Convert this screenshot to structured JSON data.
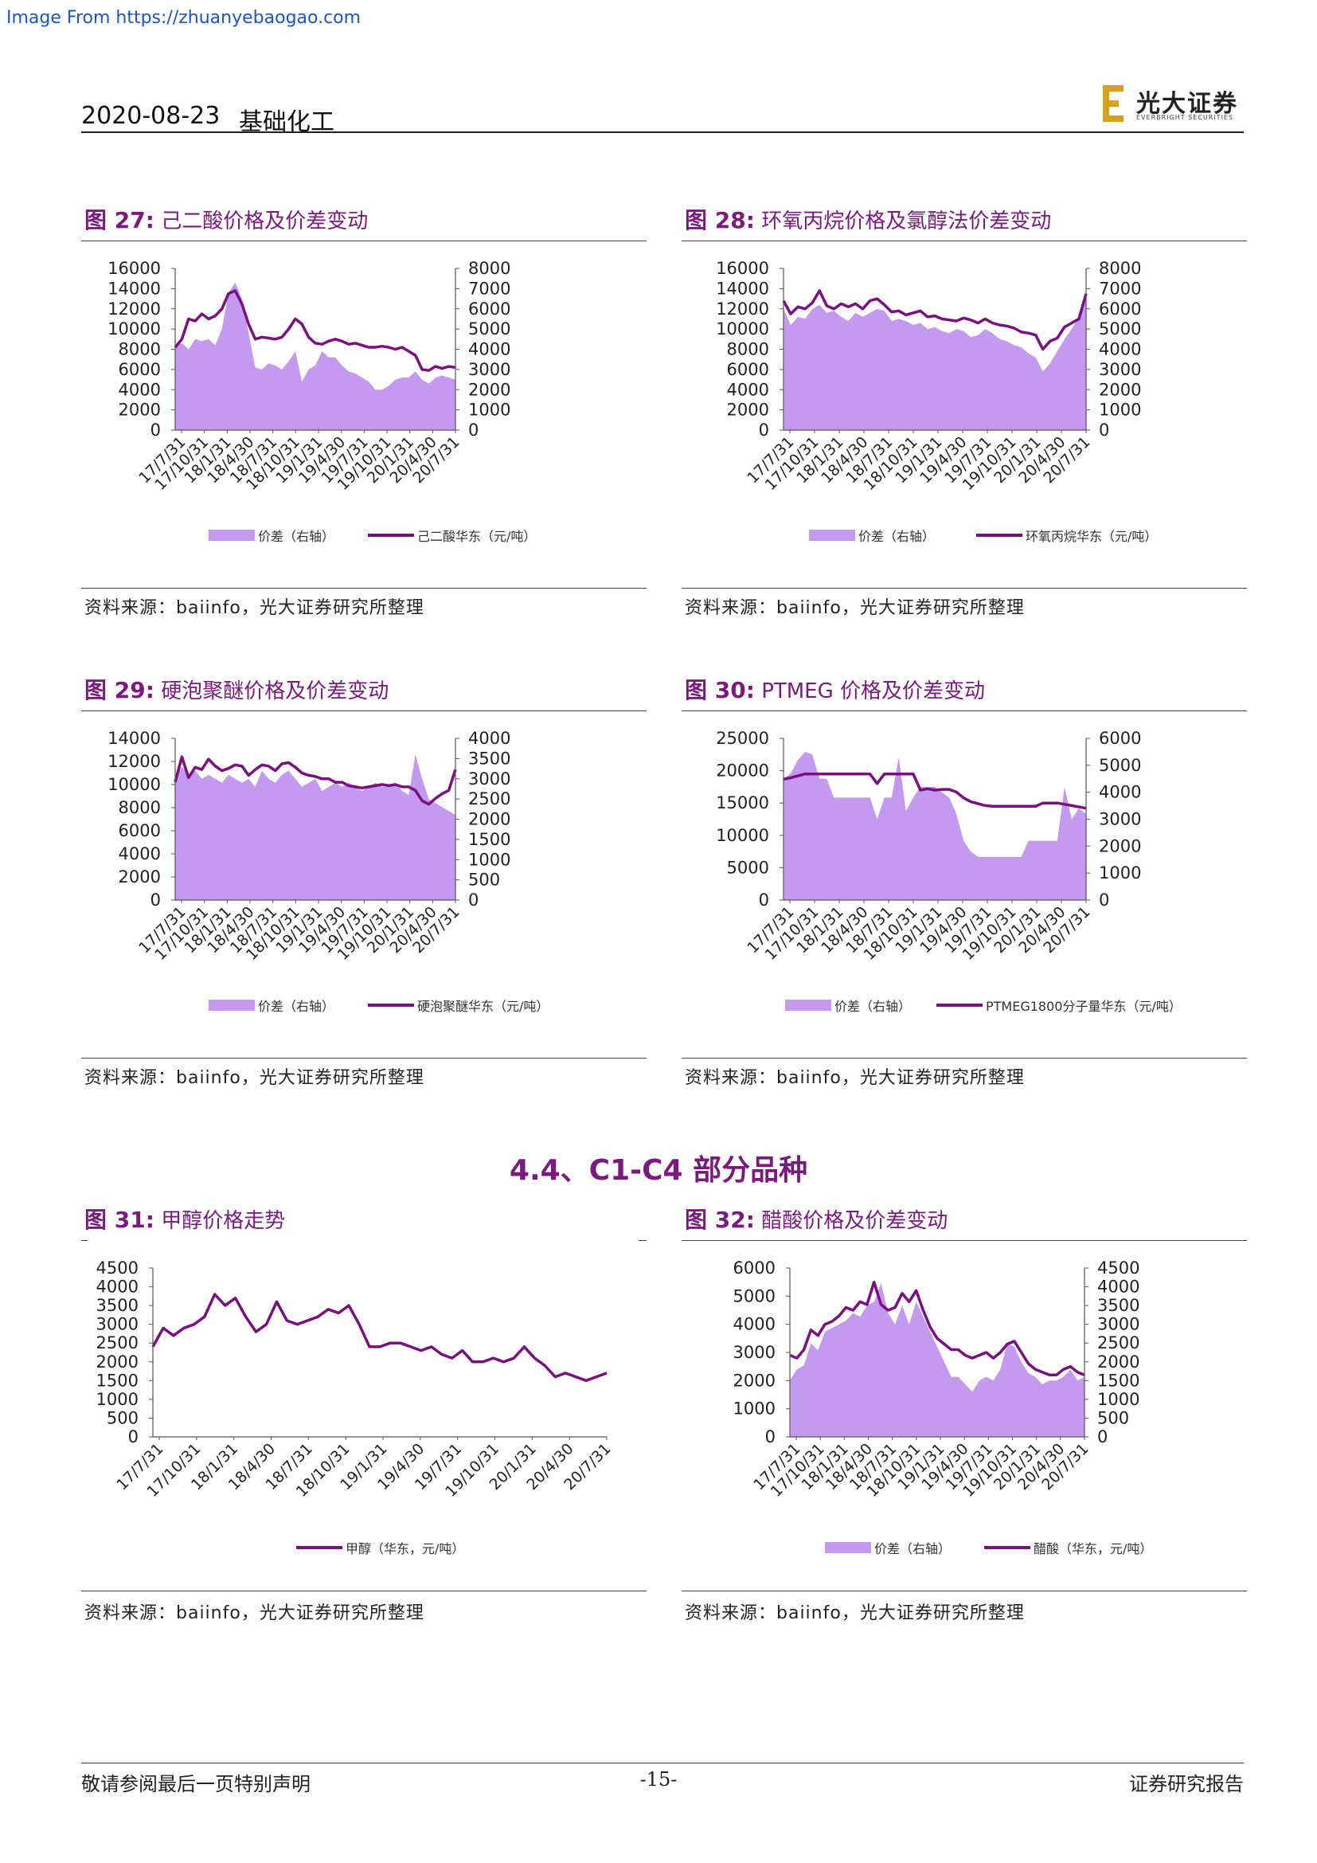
{
  "watermark": "Image From https://zhuanyebaogao.com",
  "header": {
    "date": "2020-08-23",
    "sector": "基础化工",
    "logo": {
      "cn": "光大证券",
      "en": "EVERBRIGHT SECURITIES"
    }
  },
  "section_title": "4.4、C1-C4 部分品种",
  "footer": {
    "left": "敬请参阅最后一页特别声明",
    "page": "-15-",
    "right": "证券研究报告"
  },
  "colors": {
    "line": "#7a1080",
    "area": "#c39af0",
    "title": "#7a1a7e"
  },
  "figures": [
    {
      "fig_label": "图 27:",
      "title": "己二酸价格及价差变动",
      "source": "资料来源：baiinfo，光大证券研究所整理"
    },
    {
      "fig_label": "图 28:",
      "title": "环氧丙烷价格及氯醇法价差变动",
      "source": "资料来源：baiinfo，光大证券研究所整理"
    },
    {
      "fig_label": "图 29:",
      "title": "硬泡聚醚价格及价差变动",
      "source": "资料来源：baiinfo，光大证券研究所整理"
    },
    {
      "fig_label": "图 30:",
      "title": "PTMEG 价格及价差变动",
      "source": "资料来源：baiinfo，光大证券研究所整理"
    },
    {
      "fig_label": "图 31:",
      "title": "甲醇价格走势",
      "source": "资料来源：baiinfo，光大证券研究所整理"
    },
    {
      "fig_label": "图 32:",
      "title": "醋酸价格及价差变动",
      "source": "资料来源：baiinfo，光大证券研究所整理"
    }
  ],
  "chart_data": [
    {
      "type": "line",
      "x_ticks": [
        "17/7/31",
        "17/10/31",
        "18/1/31",
        "18/4/30",
        "18/7/31",
        "18/10/31",
        "19/1/31",
        "19/4/30",
        "19/7/31",
        "19/10/31",
        "20/1/31",
        "20/4/30",
        "20/7/31"
      ],
      "y_left": {
        "ticks": [
          0,
          2000,
          4000,
          6000,
          8000,
          10000,
          12000,
          14000,
          16000
        ],
        "range": [
          0,
          16000
        ]
      },
      "y_right": {
        "ticks": [
          0,
          1000,
          2000,
          3000,
          4000,
          5000,
          6000,
          7000,
          8000
        ],
        "range": [
          0,
          8000
        ]
      },
      "series": [
        {
          "name": "价差（右轴）",
          "kind": "area",
          "axis": "right",
          "values": [
            4200,
            4300,
            4000,
            4500,
            4400,
            4500,
            4200,
            5000,
            6800,
            7300,
            6500,
            4800,
            3100,
            3000,
            3300,
            3200,
            3000,
            3400,
            3900,
            2400,
            3000,
            3200,
            3900,
            3600,
            3600,
            3200,
            2900,
            2800,
            2600,
            2400,
            2000,
            2000,
            2200,
            2500,
            2600,
            2600,
            2900,
            2500,
            2300,
            2600,
            2700,
            2600,
            2500
          ]
        },
        {
          "name": "己二酸华东（元/吨）",
          "kind": "line",
          "axis": "left",
          "values": [
            8200,
            9000,
            11000,
            10800,
            11500,
            11000,
            11300,
            12000,
            13500,
            13800,
            12500,
            10500,
            9000,
            9200,
            9100,
            9000,
            9200,
            10000,
            11000,
            10500,
            9200,
            8600,
            8500,
            8800,
            9000,
            8800,
            8500,
            8600,
            8400,
            8200,
            8200,
            8300,
            8200,
            8000,
            8200,
            7800,
            7400,
            6000,
            5900,
            6300,
            6100,
            6300,
            6200
          ]
        }
      ]
    },
    {
      "type": "line",
      "x_ticks": [
        "17/7/31",
        "17/10/31",
        "18/1/31",
        "18/4/30",
        "18/7/31",
        "18/10/31",
        "19/1/31",
        "19/4/30",
        "19/7/31",
        "19/10/31",
        "20/1/31",
        "20/4/30",
        "20/7/31"
      ],
      "y_left": {
        "ticks": [
          0,
          2000,
          4000,
          6000,
          8000,
          10000,
          12000,
          14000,
          16000
        ],
        "range": [
          0,
          16000
        ]
      },
      "y_right": {
        "ticks": [
          0,
          1000,
          2000,
          3000,
          4000,
          5000,
          6000,
          7000,
          8000
        ],
        "range": [
          0,
          8000
        ]
      },
      "series": [
        {
          "name": "价差（右轴）",
          "kind": "area",
          "axis": "right",
          "values": [
            6000,
            5200,
            5600,
            5500,
            6000,
            6200,
            5800,
            5900,
            5600,
            5400,
            5800,
            5600,
            5800,
            6000,
            5900,
            5400,
            5500,
            5400,
            5200,
            5300,
            5000,
            5100,
            4900,
            4800,
            5000,
            4900,
            4600,
            4700,
            5000,
            4800,
            4500,
            4400,
            4200,
            4100,
            3800,
            3600,
            2900,
            3300,
            3900,
            4500,
            5000,
            5600,
            6800
          ]
        },
        {
          "name": "环氧丙烷华东（元/吨）",
          "kind": "line",
          "axis": "left",
          "values": [
            12800,
            11500,
            12200,
            12000,
            12600,
            13800,
            12300,
            12000,
            12500,
            12200,
            12500,
            12000,
            12800,
            13000,
            12400,
            11700,
            11800,
            11400,
            11600,
            11800,
            11200,
            11300,
            11000,
            10900,
            10800,
            11100,
            10900,
            10600,
            11000,
            10600,
            10400,
            10300,
            10100,
            9700,
            9600,
            9400,
            8000,
            8800,
            9100,
            10200,
            10600,
            11000,
            13500
          ]
        }
      ]
    },
    {
      "type": "line",
      "x_ticks": [
        "17/7/31",
        "17/10/31",
        "18/1/31",
        "18/4/30",
        "18/7/31",
        "18/10/31",
        "19/1/31",
        "19/4/30",
        "19/7/31",
        "19/10/31",
        "20/1/31",
        "20/4/30",
        "20/7/31"
      ],
      "y_left": {
        "ticks": [
          0,
          2000,
          4000,
          6000,
          8000,
          10000,
          12000,
          14000
        ],
        "range": [
          0,
          14000
        ]
      },
      "y_right": {
        "ticks": [
          0,
          500,
          1000,
          1500,
          2000,
          2500,
          3000,
          3500,
          4000
        ],
        "range": [
          0,
          4000
        ]
      },
      "series": [
        {
          "name": "价差（右轴）",
          "kind": "area",
          "axis": "right",
          "values": [
            3000,
            3300,
            3100,
            3200,
            3000,
            3100,
            3000,
            2900,
            3100,
            3000,
            2900,
            3000,
            2800,
            3200,
            3000,
            2900,
            3100,
            3200,
            3000,
            2800,
            2900,
            3000,
            2700,
            2800,
            2900,
            2800,
            2900,
            2800,
            2700,
            2800,
            2900,
            2800,
            2800,
            2900,
            2700,
            2600,
            3600,
            3000,
            2500,
            2400,
            2300,
            2200,
            2100
          ]
        },
        {
          "name": "硬泡聚醚华东（元/吨）",
          "kind": "line",
          "axis": "left",
          "values": [
            10200,
            12400,
            10600,
            11500,
            11300,
            12200,
            11600,
            11200,
            11400,
            11700,
            11600,
            10800,
            11300,
            11700,
            11600,
            11200,
            11800,
            11900,
            11500,
            11000,
            10800,
            10700,
            10500,
            10500,
            10200,
            10200,
            9900,
            9800,
            9700,
            9800,
            9900,
            10000,
            9900,
            10000,
            9800,
            9800,
            9500,
            8600,
            8300,
            8800,
            9200,
            9500,
            11300
          ]
        }
      ]
    },
    {
      "type": "line",
      "x_ticks": [
        "17/7/31",
        "17/10/31",
        "18/1/31",
        "18/4/30",
        "18/7/31",
        "18/10/31",
        "19/1/31",
        "19/4/30",
        "19/7/31",
        "19/10/31",
        "20/1/31",
        "20/4/30",
        "20/7/31"
      ],
      "y_left": {
        "ticks": [
          0,
          5000,
          10000,
          15000,
          20000,
          25000
        ],
        "range": [
          0,
          25000
        ]
      },
      "y_right": {
        "ticks": [
          0,
          1000,
          2000,
          3000,
          4000,
          5000,
          6000
        ],
        "range": [
          0,
          6000
        ]
      },
      "series": [
        {
          "name": "价差（右轴）",
          "kind": "area",
          "axis": "right",
          "values": [
            4500,
            4700,
            5200,
            5500,
            5400,
            4500,
            4500,
            3800,
            3800,
            3800,
            3800,
            3800,
            3800,
            3000,
            3800,
            3800,
            5300,
            3300,
            3800,
            4200,
            4200,
            4200,
            4000,
            3800,
            3200,
            2200,
            1800,
            1600,
            1600,
            1600,
            1600,
            1600,
            1600,
            1600,
            2200,
            2200,
            2200,
            2200,
            2200,
            4200,
            3000,
            3400,
            3200
          ]
        },
        {
          "name": "PTMEG1800分子量华东（元/吨）",
          "kind": "line",
          "axis": "left",
          "values": [
            18700,
            18900,
            19200,
            19500,
            19500,
            19500,
            19500,
            19500,
            19500,
            19500,
            19500,
            19500,
            19500,
            18000,
            19500,
            19500,
            19500,
            19500,
            19500,
            17000,
            17200,
            17000,
            17100,
            17100,
            16700,
            15800,
            15200,
            14900,
            14600,
            14500,
            14500,
            14500,
            14500,
            14500,
            14500,
            14500,
            15000,
            15000,
            15000,
            14800,
            14600,
            14400,
            14200
          ]
        }
      ]
    },
    {
      "type": "line",
      "x_ticks": [
        "17/7/31",
        "17/10/31",
        "18/1/31",
        "18/4/30",
        "18/7/31",
        "18/10/31",
        "19/1/31",
        "19/4/30",
        "19/7/31",
        "19/10/31",
        "20/1/31",
        "20/4/30",
        "20/7/31"
      ],
      "y_left": {
        "ticks": [
          0,
          500,
          1000,
          1500,
          2000,
          2500,
          3000,
          3500,
          4000,
          4500
        ],
        "range": [
          0,
          4500
        ]
      },
      "series": [
        {
          "name": "甲醇（华东，元/吨）",
          "kind": "line",
          "axis": "left",
          "values": [
            2400,
            2900,
            2700,
            2900,
            3000,
            3200,
            3800,
            3500,
            3700,
            3200,
            2800,
            3000,
            3600,
            3100,
            3000,
            3100,
            3200,
            3400,
            3300,
            3500,
            3000,
            2400,
            2400,
            2500,
            2500,
            2400,
            2300,
            2400,
            2200,
            2100,
            2300,
            2000,
            2000,
            2100,
            2000,
            2100,
            2400,
            2100,
            1900,
            1600,
            1700,
            1600,
            1500,
            1600,
            1700
          ]
        }
      ]
    },
    {
      "type": "line",
      "x_ticks": [
        "17/7/31",
        "17/10/31",
        "18/1/31",
        "18/4/30",
        "18/7/31",
        "18/10/31",
        "19/1/31",
        "19/4/30",
        "19/7/31",
        "19/10/31",
        "20/1/31",
        "20/4/30",
        "20/7/31"
      ],
      "y_left": {
        "ticks": [
          0,
          1000,
          2000,
          3000,
          4000,
          5000,
          6000
        ],
        "range": [
          0,
          6000
        ]
      },
      "y_right": {
        "ticks": [
          0,
          500,
          1000,
          1500,
          2000,
          2500,
          3000,
          3500,
          4000,
          4500
        ],
        "range": [
          0,
          4500
        ]
      },
      "series": [
        {
          "name": "价差（右轴）",
          "kind": "area",
          "axis": "right",
          "values": [
            1500,
            1800,
            1900,
            2500,
            2300,
            2800,
            2900,
            3000,
            3100,
            3300,
            3200,
            3500,
            3600,
            4100,
            3300,
            3000,
            3500,
            3000,
            3600,
            3200,
            2800,
            2400,
            2000,
            1600,
            1600,
            1400,
            1200,
            1500,
            1600,
            1500,
            1800,
            2500,
            2400,
            2000,
            1700,
            1600,
            1400,
            1500,
            1500,
            1600,
            1800,
            1500,
            1600
          ]
        },
        {
          "name": "醋酸（华东，元/吨）",
          "kind": "line",
          "axis": "left",
          "values": [
            2900,
            2800,
            3100,
            3800,
            3600,
            4000,
            4100,
            4300,
            4600,
            4500,
            4800,
            4700,
            5500,
            4700,
            4500,
            4600,
            5100,
            4800,
            5200,
            4500,
            3900,
            3500,
            3300,
            3100,
            3100,
            2900,
            2800,
            2900,
            3000,
            2800,
            3000,
            3300,
            3400,
            3000,
            2600,
            2400,
            2300,
            2200,
            2200,
            2400,
            2500,
            2300,
            2200
          ]
        }
      ]
    }
  ]
}
